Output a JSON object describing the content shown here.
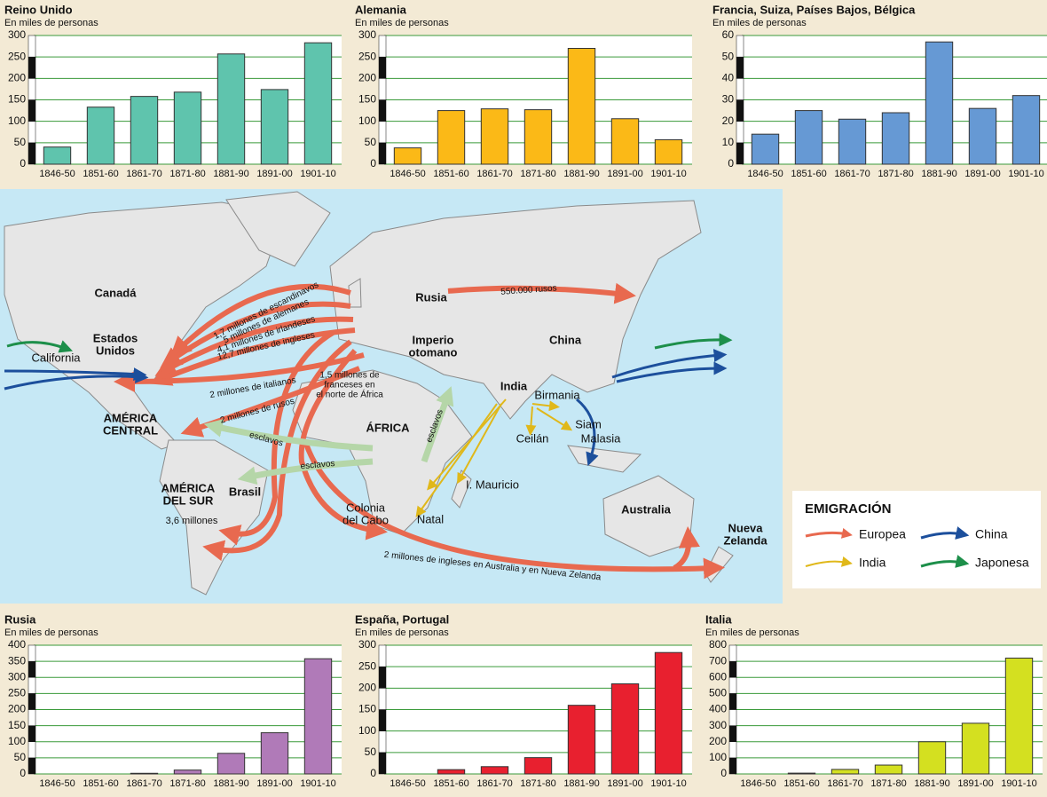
{
  "chart_data": [
    {
      "type": "bar",
      "title": "Reino Unido",
      "subtitle": "En miles de personas",
      "categories": [
        "1846-50",
        "1851-60",
        "1861-70",
        "1871-80",
        "1881-90",
        "1891-00",
        "1901-10"
      ],
      "values": [
        40,
        133,
        158,
        168,
        257,
        174,
        283
      ],
      "color": "#5fc4ad",
      "ylim": [
        0,
        300
      ],
      "yticks": [
        0,
        50,
        100,
        150,
        200,
        250,
        300
      ],
      "grid": true
    },
    {
      "type": "bar",
      "title": "Alemania",
      "subtitle": "En miles de personas",
      "categories": [
        "1846-50",
        "1851-60",
        "1861-70",
        "1871-80",
        "1881-90",
        "1891-00",
        "1901-10"
      ],
      "values": [
        38,
        125,
        129,
        127,
        270,
        106,
        57
      ],
      "color": "#fbb917",
      "ylim": [
        0,
        300
      ],
      "yticks": [
        0,
        50,
        100,
        150,
        200,
        250,
        300
      ],
      "grid": true
    },
    {
      "type": "bar",
      "title": "Francia, Suiza, Países Bajos, Bélgica",
      "subtitle": "En miles de personas",
      "categories": [
        "1846-50",
        "1851-60",
        "1861-70",
        "1871-80",
        "1881-90",
        "1891-00",
        "1901-10"
      ],
      "values": [
        14,
        25,
        21,
        24,
        57,
        26,
        32
      ],
      "color": "#6699d4",
      "ylim": [
        0,
        60
      ],
      "yticks": [
        0,
        10,
        20,
        30,
        40,
        50,
        60
      ],
      "grid": true
    },
    {
      "type": "bar",
      "title": "Rusia",
      "subtitle": "En miles de personas",
      "categories": [
        "1846-50",
        "1851-60",
        "1861-70",
        "1871-80",
        "1881-90",
        "1891-00",
        "1901-10"
      ],
      "values": [
        0,
        0,
        2,
        12,
        64,
        128,
        358
      ],
      "color": "#b07ab8",
      "ylim": [
        0,
        400
      ],
      "yticks": [
        0,
        50,
        100,
        150,
        200,
        250,
        300,
        350,
        400
      ],
      "grid": true
    },
    {
      "type": "bar",
      "title": "España, Portugal",
      "subtitle": "En miles de personas",
      "categories": [
        "1846-50",
        "1851-60",
        "1861-70",
        "1871-80",
        "1881-90",
        "1891-00",
        "1901-10"
      ],
      "values": [
        0,
        10,
        17,
        38,
        160,
        210,
        283
      ],
      "color": "#e8202f",
      "ylim": [
        0,
        300
      ],
      "yticks": [
        0,
        50,
        100,
        150,
        200,
        250,
        300
      ],
      "grid": true
    },
    {
      "type": "bar",
      "title": "Italia",
      "subtitle": "En miles de personas",
      "categories": [
        "1846-50",
        "1851-60",
        "1861-70",
        "1871-80",
        "1881-90",
        "1891-00",
        "1901-10"
      ],
      "values": [
        0,
        5,
        28,
        55,
        200,
        315,
        720
      ],
      "color": "#d4e020",
      "ylim": [
        0,
        800
      ],
      "yticks": [
        0,
        100,
        200,
        300,
        400,
        500,
        600,
        700,
        800
      ],
      "grid": true
    }
  ],
  "map": {
    "labels": [
      "Canadá",
      [
        "Estados",
        "Unidos"
      ],
      "California",
      [
        "AMÉRICA",
        "CENTRAL"
      ],
      [
        "AMÉRICA",
        "DEL SUR"
      ],
      "Brasil",
      "3,6 millones",
      "Rusia",
      [
        "Imperio",
        "otomano"
      ],
      "China",
      "India",
      "Birmania",
      "Siam",
      "Malasia",
      "Ceilán",
      "ÁFRICA",
      "I. Mauricio",
      "Natal",
      [
        "Colonia",
        "del Cabo"
      ],
      "Australia",
      [
        "Nueva",
        "Zelanda"
      ],
      [
        "1,5 millones de",
        "franceses en",
        "el norte de África"
      ]
    ],
    "arrow_labels": [
      "1,7 millones de escandinavos",
      "5 millones de alemanes",
      "4,1 millones de irlandeses",
      "12,7 millones de ingleses",
      "2 millones de italianos",
      "2 millones de rusos",
      "550.000 rusos",
      "esclavos",
      "esclavos",
      "esclavos",
      "2 millones de ingleses en Australia y en Nueva Zelanda"
    ],
    "legend": {
      "title": "EMIGRACIÓN",
      "items": [
        "Europea",
        "China",
        "India",
        "Japonesa"
      ]
    }
  }
}
